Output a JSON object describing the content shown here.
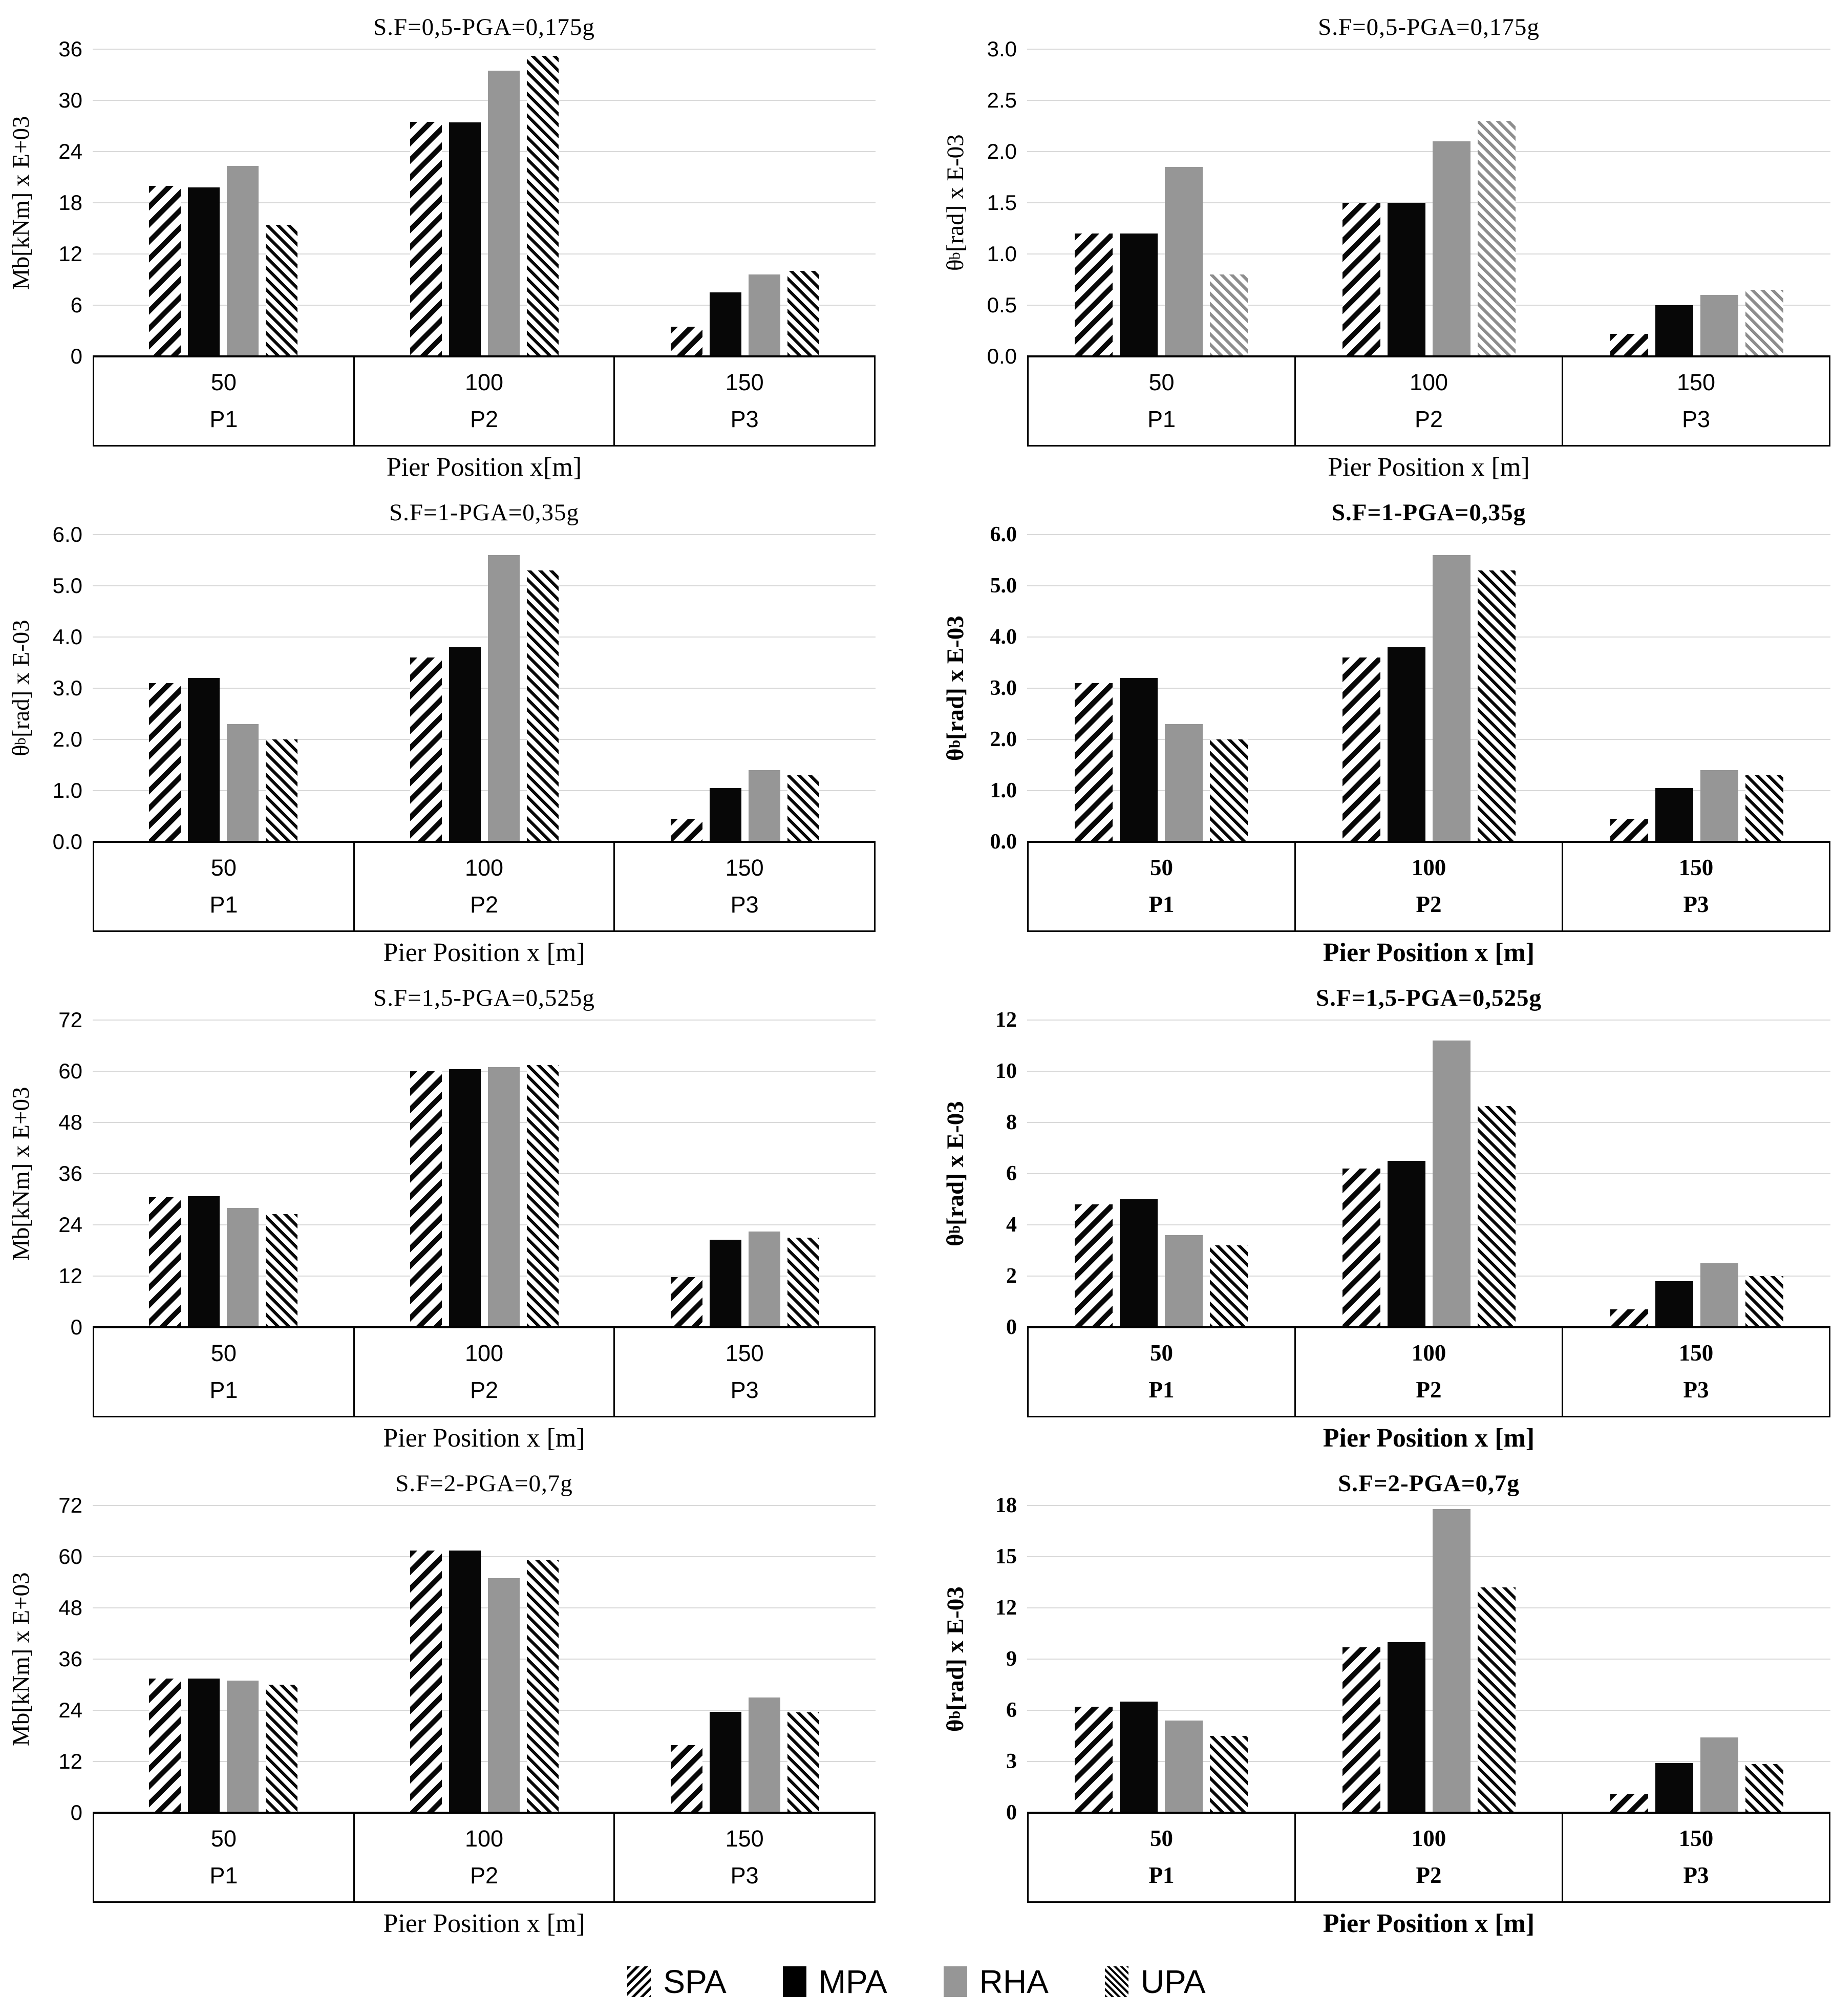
{
  "legend": {
    "items": [
      {
        "name": "SPA",
        "swatch": "spa",
        "pattern": "diagonal-hatch-down"
      },
      {
        "name": "MPA",
        "swatch": "mpa",
        "pattern": "solid-black"
      },
      {
        "name": "RHA",
        "swatch": "rha",
        "pattern": "solid-gray"
      },
      {
        "name": "UPA",
        "swatch": "upa",
        "pattern": "diagonal-hatch-up"
      }
    ]
  },
  "colors": {
    "bar_black": "#070707",
    "bar_gray": "#969696",
    "upa_light_hatch": "#8d8d8d",
    "gridline": "#d9d9d9",
    "axis": "#000000"
  },
  "chart_data": [
    {
      "type": "bar",
      "slug": "chart-mb-sf05",
      "title": "S.F=0,5-PGA=0,175g",
      "ylabel_pre": "Mb",
      "ylabel_sub": "",
      "ylabel_post": " [kNm] x E+03",
      "xlabel": "Pier Position x[m]",
      "ylim": [
        0,
        36
      ],
      "yticks": [
        "0",
        "6",
        "12",
        "18",
        "24",
        "30",
        "36"
      ],
      "categories": [
        "50",
        "100",
        "150"
      ],
      "piers": [
        "P1",
        "P2",
        "P3"
      ],
      "grid": true,
      "legend_position": "bottom-shared",
      "upa_variant": "dark",
      "lowres": false,
      "series": [
        {
          "name": "SPA",
          "values": [
            20.0,
            27.5,
            3.5
          ]
        },
        {
          "name": "MPA",
          "values": [
            19.8,
            27.4,
            7.5
          ]
        },
        {
          "name": "RHA",
          "values": [
            22.3,
            33.5,
            9.6
          ]
        },
        {
          "name": "UPA",
          "values": [
            15.4,
            35.2,
            10.0
          ]
        }
      ]
    },
    {
      "type": "bar",
      "slug": "chart-theta-sf05",
      "title": "S.F=0,5-PGA=0,175g",
      "ylabel_pre": "θ",
      "ylabel_sub": "b",
      "ylabel_post": " [rad] x E-03",
      "xlabel": "Pier Position x [m]",
      "ylim": [
        0,
        3.0
      ],
      "yticks": [
        "0.0",
        "0.5",
        "1.0",
        "1.5",
        "2.0",
        "2.5",
        "3.0"
      ],
      "categories": [
        "50",
        "100",
        "150"
      ],
      "piers": [
        "P1",
        "P2",
        "P3"
      ],
      "grid": true,
      "legend_position": "bottom-shared",
      "upa_variant": "light",
      "lowres": false,
      "series": [
        {
          "name": "SPA",
          "values": [
            1.2,
            1.5,
            0.22
          ]
        },
        {
          "name": "MPA",
          "values": [
            1.2,
            1.5,
            0.5
          ]
        },
        {
          "name": "RHA",
          "values": [
            1.85,
            2.1,
            0.6
          ]
        },
        {
          "name": "UPA",
          "values": [
            0.8,
            2.3,
            0.65
          ]
        }
      ]
    },
    {
      "type": "bar",
      "slug": "chart-theta-sf1-left",
      "title": "S.F=1-PGA=0,35g",
      "ylabel_pre": "θ",
      "ylabel_sub": "b",
      "ylabel_post": "[rad] x E-03",
      "xlabel": "Pier Position x [m]",
      "ylim": [
        0,
        6.0
      ],
      "yticks": [
        "0.0",
        "1.0",
        "2.0",
        "3.0",
        "4.0",
        "5.0",
        "6.0"
      ],
      "categories": [
        "50",
        "100",
        "150"
      ],
      "piers": [
        "P1",
        "P2",
        "P3"
      ],
      "grid": true,
      "legend_position": "bottom-shared",
      "upa_variant": "dark",
      "lowres": false,
      "series": [
        {
          "name": "SPA",
          "values": [
            3.1,
            3.6,
            0.45
          ]
        },
        {
          "name": "MPA",
          "values": [
            3.2,
            3.8,
            1.05
          ]
        },
        {
          "name": "RHA",
          "values": [
            2.3,
            5.6,
            1.4
          ]
        },
        {
          "name": "UPA",
          "values": [
            2.0,
            5.3,
            1.3
          ]
        }
      ]
    },
    {
      "type": "bar",
      "slug": "chart-theta-sf1-right",
      "title": "S.F=1-PGA=0,35g",
      "ylabel_pre": "θ",
      "ylabel_sub": "b",
      "ylabel_post": "[rad] x E-03",
      "xlabel": "Pier Position x [m]",
      "ylim": [
        0,
        6.0
      ],
      "yticks": [
        "0.0",
        "1.0",
        "2.0",
        "3.0",
        "4.0",
        "5.0",
        "6.0"
      ],
      "categories": [
        "50",
        "100",
        "150"
      ],
      "piers": [
        "P1",
        "P2",
        "P3"
      ],
      "grid": true,
      "legend_position": "bottom-shared",
      "upa_variant": "dark",
      "lowres": true,
      "series": [
        {
          "name": "SPA",
          "values": [
            3.1,
            3.6,
            0.45
          ]
        },
        {
          "name": "MPA",
          "values": [
            3.2,
            3.8,
            1.05
          ]
        },
        {
          "name": "RHA",
          "values": [
            2.3,
            5.6,
            1.4
          ]
        },
        {
          "name": "UPA",
          "values": [
            2.0,
            5.3,
            1.3
          ]
        }
      ]
    },
    {
      "type": "bar",
      "slug": "chart-mb-sf15",
      "title": "S.F=1,5-PGA=0,525g",
      "ylabel_pre": "Mb",
      "ylabel_sub": "",
      "ylabel_post": " [kNm]  x E+03",
      "xlabel": "Pier Position x [m]",
      "ylim": [
        0,
        72
      ],
      "yticks": [
        "0",
        "12",
        "24",
        "36",
        "48",
        "60",
        "72"
      ],
      "categories": [
        "50",
        "100",
        "150"
      ],
      "piers": [
        "P1",
        "P2",
        "P3"
      ],
      "grid": true,
      "legend_position": "bottom-shared",
      "upa_variant": "dark",
      "lowres": false,
      "series": [
        {
          "name": "SPA",
          "values": [
            30.5,
            60.0,
            11.8
          ]
        },
        {
          "name": "MPA",
          "values": [
            30.7,
            60.5,
            20.5
          ]
        },
        {
          "name": "RHA",
          "values": [
            28.0,
            61.0,
            22.5
          ]
        },
        {
          "name": "UPA",
          "values": [
            26.5,
            61.5,
            21.0
          ]
        }
      ]
    },
    {
      "type": "bar",
      "slug": "chart-theta-sf15",
      "title": "S.F=1,5-PGA=0,525g",
      "ylabel_pre": "θ",
      "ylabel_sub": "b",
      "ylabel_post": " [rad] x E-03",
      "xlabel": "Pier Position x [m]",
      "ylim": [
        0,
        12
      ],
      "yticks": [
        "0",
        "2",
        "4",
        "6",
        "8",
        "10",
        "12"
      ],
      "categories": [
        "50",
        "100",
        "150"
      ],
      "piers": [
        "P1",
        "P2",
        "P3"
      ],
      "grid": true,
      "legend_position": "bottom-shared",
      "upa_variant": "dark",
      "lowres": true,
      "series": [
        {
          "name": "SPA",
          "values": [
            4.8,
            6.2,
            0.7
          ]
        },
        {
          "name": "MPA",
          "values": [
            5.0,
            6.5,
            1.8
          ]
        },
        {
          "name": "RHA",
          "values": [
            3.6,
            11.2,
            2.5
          ]
        },
        {
          "name": "UPA",
          "values": [
            3.2,
            8.65,
            2.0
          ]
        }
      ]
    },
    {
      "type": "bar",
      "slug": "chart-mb-sf2",
      "title": "S.F=2-PGA=0,7g",
      "ylabel_pre": "Mb",
      "ylabel_sub": "",
      "ylabel_post": " [kNm] x E+03",
      "xlabel": "Pier Position x [m]",
      "ylim": [
        0,
        72
      ],
      "yticks": [
        "0",
        "12",
        "24",
        "36",
        "48",
        "60",
        "72"
      ],
      "categories": [
        "50",
        "100",
        "150"
      ],
      "piers": [
        "P1",
        "P2",
        "P3"
      ],
      "grid": true,
      "legend_position": "bottom-shared",
      "upa_variant": "dark",
      "lowres": false,
      "series": [
        {
          "name": "SPA",
          "values": [
            31.5,
            61.5,
            15.8
          ]
        },
        {
          "name": "MPA",
          "values": [
            31.5,
            61.5,
            23.6
          ]
        },
        {
          "name": "RHA",
          "values": [
            31.0,
            55.0,
            27.0
          ]
        },
        {
          "name": "UPA",
          "values": [
            30.0,
            59.3,
            23.5
          ]
        }
      ]
    },
    {
      "type": "bar",
      "slug": "chart-theta-sf2",
      "title": "S.F=2-PGA=0,7g",
      "ylabel_pre": "θ",
      "ylabel_sub": "b",
      "ylabel_post": " [rad] x E-03",
      "xlabel": "Pier Position x [m]",
      "ylim": [
        0,
        18
      ],
      "yticks": [
        "0",
        "3",
        "6",
        "9",
        "12",
        "15",
        "18"
      ],
      "categories": [
        "50",
        "100",
        "150"
      ],
      "piers": [
        "P1",
        "P2",
        "P3"
      ],
      "grid": true,
      "legend_position": "bottom-shared",
      "upa_variant": "dark",
      "lowres": true,
      "series": [
        {
          "name": "SPA",
          "values": [
            6.2,
            9.7,
            1.1
          ]
        },
        {
          "name": "MPA",
          "values": [
            6.5,
            10.0,
            2.9
          ]
        },
        {
          "name": "RHA",
          "values": [
            5.4,
            17.8,
            4.4
          ]
        },
        {
          "name": "UPA",
          "values": [
            4.5,
            13.2,
            2.85
          ]
        }
      ]
    }
  ]
}
